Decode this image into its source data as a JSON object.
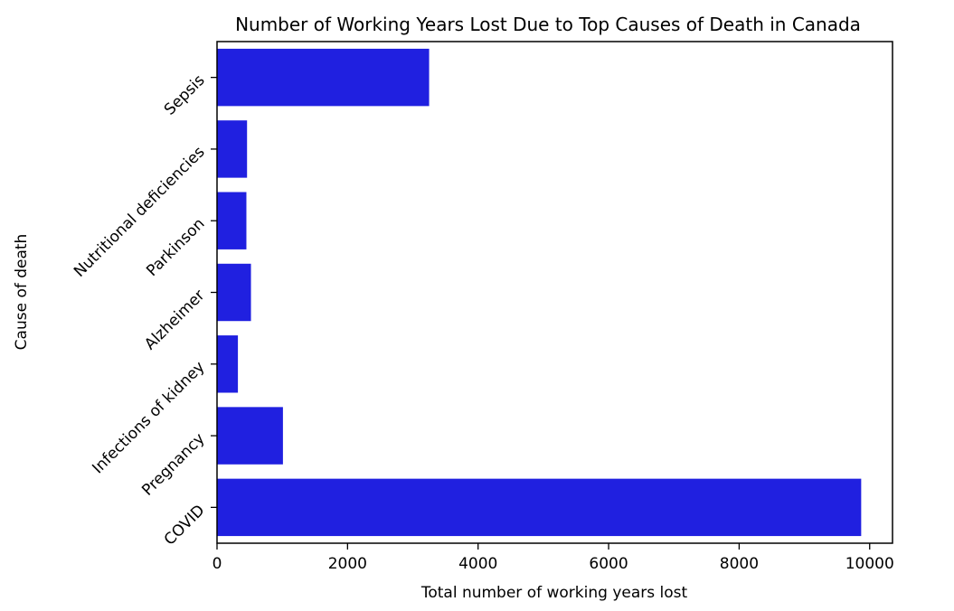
{
  "chart_data": {
    "type": "bar",
    "orientation": "horizontal",
    "title": "Number of Working Years Lost Due to Top Causes of Death in Canada",
    "xlabel": "Total number of working years lost",
    "ylabel": "Cause of death",
    "categories": [
      "Sepsis",
      "Nutritional deficiencies",
      "Parkinson",
      "Alzheimer",
      "Infections of kidney",
      "Pregnancy",
      "COVID"
    ],
    "values": [
      3250,
      460,
      450,
      520,
      320,
      1010,
      9870
    ],
    "xlim": [
      0,
      10350
    ],
    "xticks": [
      0,
      2000,
      4000,
      6000,
      8000,
      10000
    ],
    "bar_color": "#2020e0",
    "grid": false,
    "legend": "none"
  }
}
